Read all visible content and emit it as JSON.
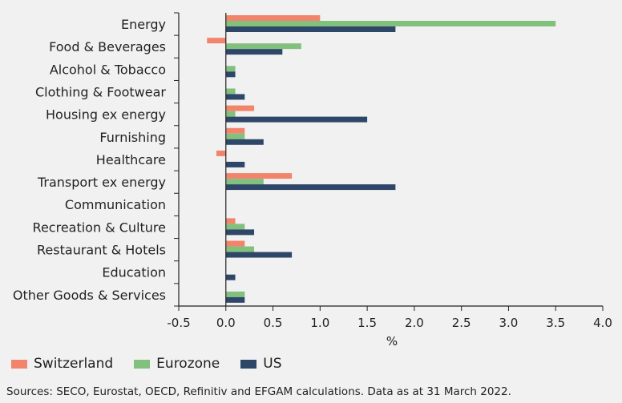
{
  "chart_data": {
    "type": "bar",
    "orientation": "horizontal",
    "categories": [
      "Energy",
      "Food & Beverages",
      "Alcohol & Tobacco",
      "Clothing & Footwear",
      "Housing ex energy",
      "Furnishing",
      "Healthcare",
      "Transport ex energy",
      "Communication",
      "Recreation & Culture",
      "Restaurant & Hotels",
      "Education",
      "Other Goods & Services"
    ],
    "series": [
      {
        "name": "Switzerland",
        "color": "#f2846b",
        "values": [
          1.0,
          -0.2,
          0.0,
          0.0,
          0.3,
          0.2,
          -0.1,
          0.7,
          0.0,
          0.1,
          0.2,
          0.0,
          0.0
        ]
      },
      {
        "name": "Eurozone",
        "color": "#82c07e",
        "values": [
          3.5,
          0.8,
          0.1,
          0.1,
          0.1,
          0.2,
          0.0,
          0.4,
          0.0,
          0.2,
          0.3,
          0.0,
          0.2
        ]
      },
      {
        "name": "US",
        "color": "#2e4668",
        "values": [
          1.8,
          0.6,
          0.1,
          0.2,
          1.5,
          0.4,
          0.2,
          1.8,
          0.0,
          0.3,
          0.7,
          0.1,
          0.2
        ]
      }
    ],
    "xlim": [
      -0.5,
      4.0
    ],
    "xticks": [
      "-0.5",
      "0.0",
      "0.5",
      "1.0",
      "1.5",
      "2.0",
      "2.5",
      "3.0",
      "3.5",
      "4.0"
    ],
    "xtick_values": [
      -0.5,
      0.0,
      0.5,
      1.0,
      1.5,
      2.0,
      2.5,
      3.0,
      3.5,
      4.0
    ],
    "xlabel": "%",
    "legend_position": "bottom-left"
  },
  "source": "Sources: SECO, Eurostat, OECD, Refinitiv and EFGAM calculations. Data as at 31 March 2022."
}
